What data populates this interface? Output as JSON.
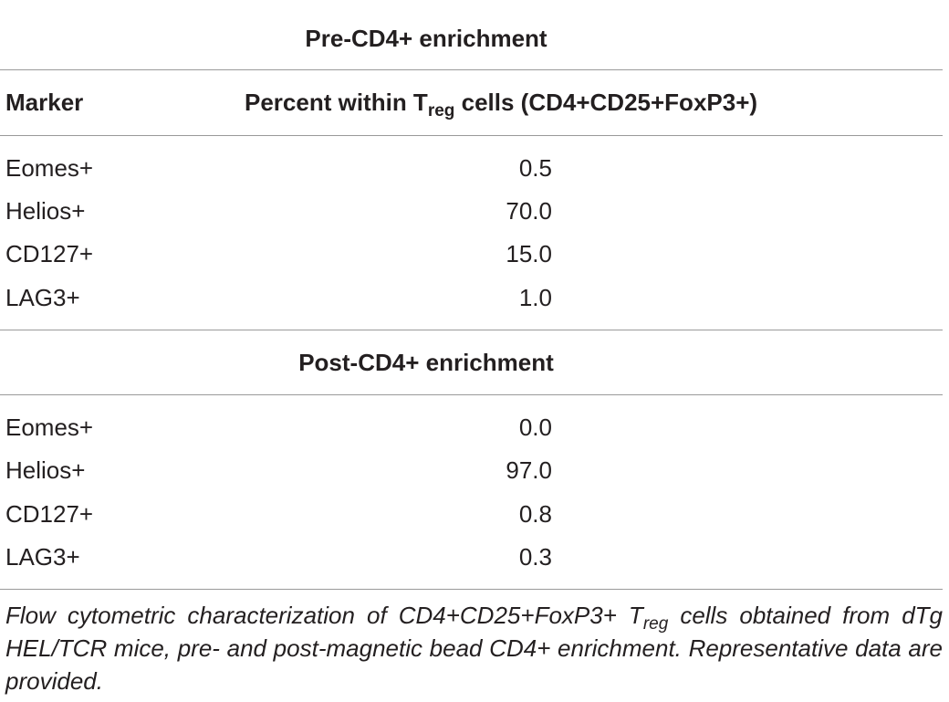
{
  "table": {
    "sections": [
      {
        "heading": "Pre-CD4+ enrichment",
        "rows": [
          {
            "marker": "Eomes+",
            "value": "0.5"
          },
          {
            "marker": "Helios+",
            "value": "70.0"
          },
          {
            "marker": "CD127+",
            "value": "15.0"
          },
          {
            "marker": "LAG3+",
            "value": "1.0"
          }
        ]
      },
      {
        "heading": "Post-CD4+ enrichment",
        "rows": [
          {
            "marker": "Eomes+",
            "value": "0.0"
          },
          {
            "marker": "Helios+",
            "value": "97.0"
          },
          {
            "marker": "CD127+",
            "value": "0.8"
          },
          {
            "marker": "LAG3+",
            "value": "0.3"
          }
        ]
      }
    ],
    "header": {
      "marker": "Marker",
      "percent_prefix": "Percent within T",
      "percent_sub": "reg",
      "percent_suffix": " cells (CD4+CD25+FoxP3+)"
    },
    "caption": {
      "part1": "Flow cytometric characterization of CD4+CD25+FoxP3+ T",
      "sub": "reg",
      "part2": " cells obtained from dTg HEL/TCR mice, pre- and post-magnetic bead CD4+ enrichment. Representative data are provided."
    }
  }
}
